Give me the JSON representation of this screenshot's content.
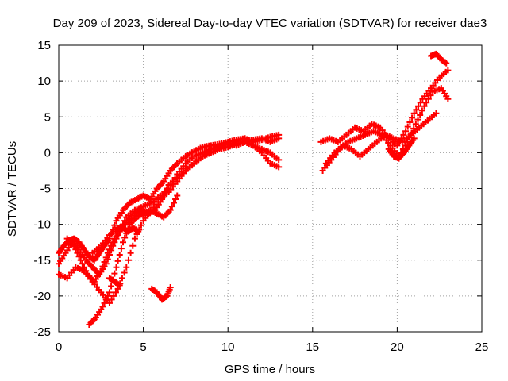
{
  "chart_data": {
    "type": "scatter",
    "title": "Day 209 of 2023, Sidereal Day-to-day VTEC variation (SDTVAR) for receiver dae3",
    "xlabel": "GPS time / hours",
    "ylabel": "SDTVAR / TECUs",
    "xlim": [
      0,
      25
    ],
    "ylim": [
      -25,
      15
    ],
    "x_ticks": [
      0,
      5,
      10,
      15,
      20,
      25
    ],
    "y_ticks": [
      -25,
      -20,
      -15,
      -10,
      -5,
      0,
      5,
      10,
      15
    ],
    "grid": true,
    "legend": "none",
    "marker": "cross",
    "color": "#ff0000",
    "series": [
      {
        "x": [
          0.0,
          0.3,
          0.6,
          0.9,
          1.2,
          1.5,
          1.8,
          2.1,
          2.4,
          2.7,
          3.0,
          3.4,
          3.8,
          4.2,
          4.6,
          5.0,
          5.4,
          5.8,
          6.2,
          6.6,
          7.0,
          7.5,
          8.0,
          8.5,
          9.0,
          9.5,
          10.0,
          10.5,
          11.0,
          11.5,
          12.0,
          12.5,
          13.0
        ],
        "y": [
          -14.0,
          -13.0,
          -12.2,
          -12.0,
          -12.5,
          -13.5,
          -14.5,
          -15.0,
          -14.0,
          -13.0,
          -12.0,
          -9.5,
          -8.0,
          -7.0,
          -6.5,
          -6.0,
          -6.5,
          -5.0,
          -4.0,
          -2.5,
          -1.5,
          -0.5,
          0.2,
          0.8,
          1.0,
          1.2,
          1.5,
          1.8,
          2.0,
          1.5,
          1.8,
          2.2,
          2.5
        ]
      },
      {
        "x": [
          0.0,
          0.4,
          0.8,
          1.2,
          1.6,
          2.0,
          2.4,
          2.8,
          3.2,
          3.6,
          4.0,
          4.5,
          5.0,
          5.5,
          6.0,
          6.5,
          7.0,
          7.5,
          8.0,
          8.5,
          9.0,
          9.5,
          10.0,
          10.5,
          11.0,
          11.5,
          12.0,
          12.5,
          13.0
        ],
        "y": [
          -15.5,
          -14.0,
          -12.5,
          -13.5,
          -15.0,
          -16.0,
          -17.0,
          -15.5,
          -13.0,
          -11.0,
          -9.0,
          -8.0,
          -7.5,
          -7.0,
          -6.0,
          -5.0,
          -3.0,
          -1.5,
          -0.5,
          0.0,
          0.5,
          1.0,
          1.2,
          1.0,
          1.5,
          1.0,
          0.5,
          0.0,
          -1.0
        ]
      },
      {
        "x": [
          0.5,
          0.9,
          1.3,
          1.7,
          2.1,
          2.5,
          2.9,
          3.3,
          3.7,
          4.1,
          4.5,
          4.9,
          5.3,
          5.7,
          6.1,
          6.5,
          7.0,
          7.5,
          8.0,
          8.5,
          9.0,
          9.5,
          10.0,
          10.5,
          11.0,
          11.5,
          12.0,
          12.5,
          13.0
        ],
        "y": [
          -12.0,
          -13.0,
          -15.0,
          -17.0,
          -18.0,
          -16.5,
          -14.0,
          -12.0,
          -10.5,
          -9.5,
          -8.5,
          -8.0,
          -8.5,
          -8.0,
          -6.5,
          -4.5,
          -3.5,
          -2.5,
          -1.5,
          -0.5,
          0.0,
          0.5,
          0.8,
          1.2,
          1.5,
          1.8,
          2.0,
          1.5,
          2.0
        ]
      },
      {
        "x": [
          0.0,
          0.5,
          1.0,
          1.5,
          2.0,
          2.5,
          3.0,
          3.5,
          4.0,
          4.5,
          5.0,
          5.5,
          6.0,
          6.5,
          7.0,
          7.5,
          8.0,
          8.5,
          9.0,
          9.5,
          10.0,
          10.5,
          11.0,
          11.5,
          12.0,
          12.5,
          13.0
        ],
        "y": [
          -17.0,
          -17.5,
          -16.0,
          -16.5,
          -18.0,
          -19.5,
          -21.0,
          -19.0,
          -16.0,
          -12.0,
          -9.5,
          -8.0,
          -6.5,
          -5.5,
          -4.0,
          -2.5,
          -1.5,
          -0.5,
          0.5,
          0.8,
          1.2,
          1.5,
          2.0,
          1.0,
          0.0,
          -1.5,
          -2.0
        ]
      },
      {
        "x": [
          1.8,
          2.2,
          2.6,
          3.0,
          3.4,
          3.8,
          4.2,
          4.6,
          5.0,
          5.4,
          5.8,
          6.2,
          6.6,
          7.0
        ],
        "y": [
          -24.0,
          -23.0,
          -21.5,
          -19.5,
          -16.0,
          -12.5,
          -10.0,
          -9.0,
          -8.5,
          -8.0,
          -8.5,
          -9.0,
          -8.0,
          -6.0
        ]
      },
      {
        "x": [
          2.0,
          2.5,
          3.0,
          3.5
        ],
        "y": [
          -14.0,
          -13.0,
          -11.5,
          -10.5
        ]
      },
      {
        "x": [
          3.0,
          3.3,
          3.6
        ],
        "y": [
          -17.5,
          -18.0,
          -18.5
        ]
      },
      {
        "x": [
          3.5,
          3.8,
          4.1,
          4.4,
          4.7
        ],
        "y": [
          -10.5,
          -10.5,
          -11.0,
          -10.5,
          -11.0
        ]
      },
      {
        "x": [
          5.5,
          5.8,
          6.1,
          6.4,
          6.6
        ],
        "y": [
          -19.0,
          -19.5,
          -20.5,
          -20.0,
          -18.8
        ]
      },
      {
        "x": [
          15.5,
          16.0,
          16.5,
          17.0,
          17.5,
          18.0,
          18.5,
          19.0,
          19.5,
          20.0,
          20.5,
          21.0,
          21.5,
          22.0,
          22.5,
          23.0
        ],
        "y": [
          1.5,
          2.0,
          1.5,
          2.5,
          3.5,
          3.0,
          4.0,
          3.5,
          2.0,
          1.0,
          3.0,
          5.5,
          7.5,
          9.0,
          10.5,
          11.5
        ]
      },
      {
        "x": [
          15.6,
          16.1,
          16.6,
          17.1,
          17.6,
          18.1,
          18.6,
          19.1,
          19.6,
          20.1,
          20.6,
          21.1,
          21.6,
          22.1,
          22.6,
          23.0
        ],
        "y": [
          -2.5,
          -1.0,
          0.5,
          1.5,
          2.0,
          2.5,
          3.0,
          2.5,
          1.0,
          -0.5,
          1.5,
          4.0,
          6.5,
          8.5,
          9.0,
          7.5
        ]
      },
      {
        "x": [
          15.8,
          16.3,
          16.8,
          17.3,
          17.8,
          18.3,
          18.8,
          19.3,
          19.8,
          20.3,
          20.8,
          21.3,
          21.8,
          22.3
        ],
        "y": [
          -1.5,
          0.0,
          1.0,
          0.5,
          -0.5,
          0.5,
          1.5,
          2.5,
          2.0,
          1.5,
          2.5,
          3.5,
          4.5,
          5.5
        ]
      },
      {
        "x": [
          19.5,
          19.8,
          20.1,
          20.4,
          20.7,
          21.0
        ],
        "y": [
          0.5,
          -0.5,
          -0.8,
          0.0,
          1.0,
          2.0
        ]
      },
      {
        "x": [
          22.0,
          22.3,
          22.6,
          22.9
        ],
        "y": [
          13.5,
          13.8,
          13.0,
          12.5
        ]
      }
    ]
  }
}
